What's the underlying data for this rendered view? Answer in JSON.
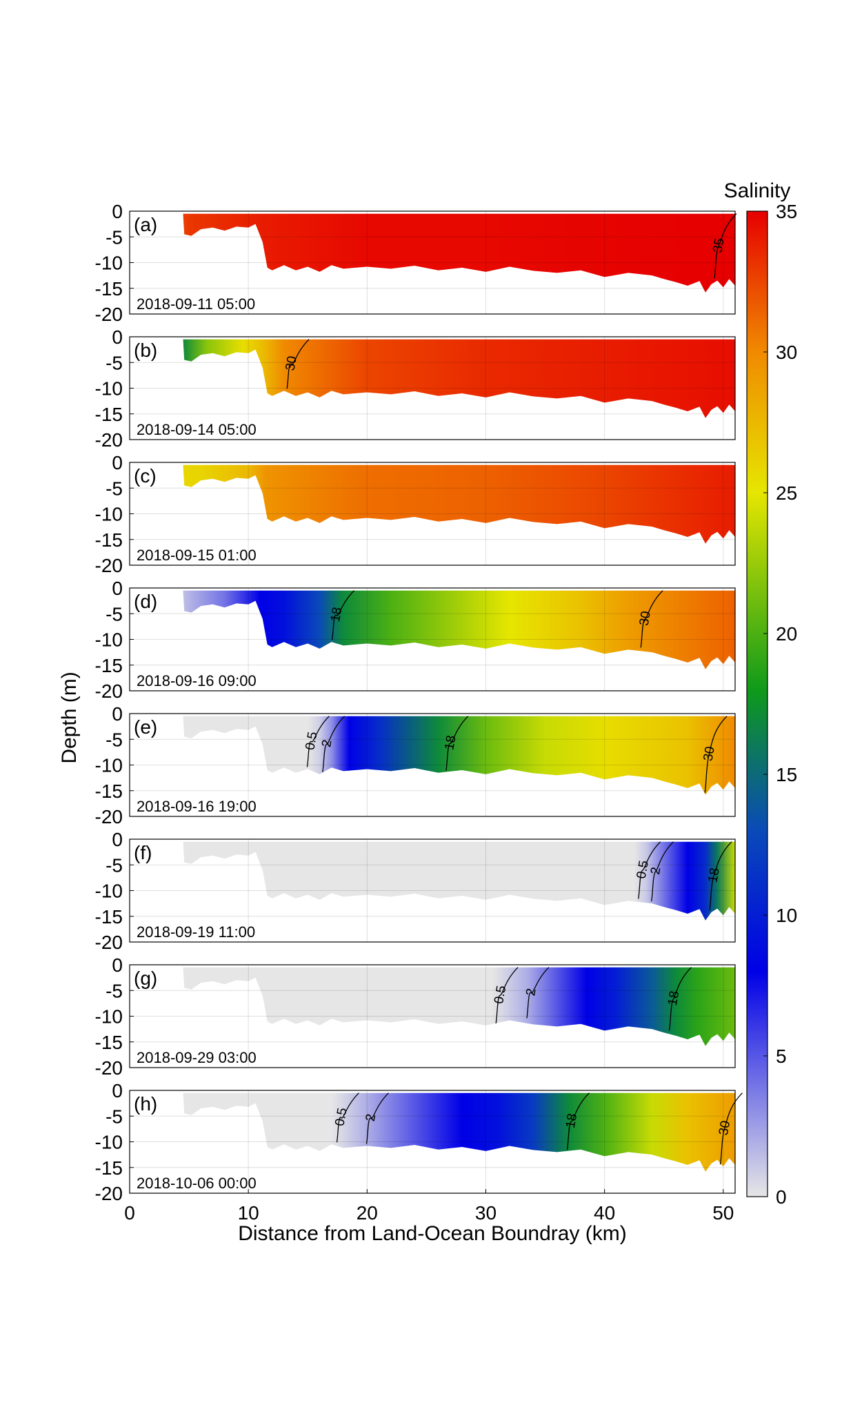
{
  "chart_data": {
    "type": "heatmap",
    "xlabel": "Distance from Land-Ocean Boundray (km)",
    "ylabel": "Depth (m)",
    "xlim": [
      0,
      51
    ],
    "ylim": [
      -20,
      0
    ],
    "x_ticks": [
      "0",
      "10",
      "20",
      "30",
      "40",
      "50"
    ],
    "y_ticks": [
      "0",
      "-5",
      "-10",
      "-15",
      "-20"
    ],
    "grid": true,
    "colorbar": {
      "label": "Salinity",
      "range": [
        0,
        35
      ],
      "ticks": [
        "35",
        "30",
        "25",
        "20",
        "15",
        "10",
        "5",
        "0"
      ],
      "colormap": [
        {
          "value": 0,
          "color": "#e6e6e6"
        },
        {
          "value": 8,
          "color": "#0000e6"
        },
        {
          "value": 13,
          "color": "#0a4ab8"
        },
        {
          "value": 18,
          "color": "#0f9a1a"
        },
        {
          "value": 25,
          "color": "#e6e600"
        },
        {
          "value": 30,
          "color": "#f08a00"
        },
        {
          "value": 35,
          "color": "#e60000"
        }
      ]
    },
    "seafloor_profile": {
      "x_km": [
        0,
        4.5,
        4.6,
        5.2,
        6,
        7,
        8,
        9,
        10,
        10.6,
        11.2,
        11.6,
        12,
        13,
        14,
        15,
        16,
        17,
        18,
        20,
        22,
        24,
        26,
        28,
        30,
        32,
        34,
        36,
        38,
        40,
        42,
        44,
        45,
        46,
        47,
        48,
        48.5,
        49,
        49.5,
        50,
        50.5,
        51
      ],
      "depth_m": [
        -0.5,
        -0.5,
        -4.5,
        -4.8,
        -3.5,
        -3.2,
        -3.8,
        -3.0,
        -3.2,
        -2.5,
        -6.0,
        -11.0,
        -11.5,
        -10.5,
        -11.5,
        -10.8,
        -11.8,
        -10.5,
        -11.2,
        -10.8,
        -11.2,
        -10.6,
        -11.5,
        -11.0,
        -11.8,
        -10.8,
        -11.6,
        -12.0,
        -11.5,
        -12.8,
        -12.0,
        -12.5,
        -13.2,
        -13.8,
        -14.5,
        -13.6,
        -15.8,
        -14.2,
        -13.5,
        -14.8,
        -13.2,
        -14.5
      ]
    },
    "panels": [
      {
        "label": "(a)",
        "time": "2018-09-11 05:00",
        "salinity_by_distance": [
          {
            "x": 0,
            "s": 27
          },
          {
            "x": 2,
            "s": 31
          },
          {
            "x": 5,
            "s": 33
          },
          {
            "x": 11,
            "s": 34
          },
          {
            "x": 20,
            "s": 34.7
          },
          {
            "x": 30,
            "s": 34.7
          },
          {
            "x": 40,
            "s": 34.9
          },
          {
            "x": 51,
            "s": 35
          }
        ],
        "contours": [
          {
            "level": "35",
            "x_km": 49.6
          }
        ]
      },
      {
        "label": "(b)",
        "time": "2018-09-14 05:00",
        "salinity_by_distance": [
          {
            "x": 0,
            "s": 8
          },
          {
            "x": 2.5,
            "s": 12
          },
          {
            "x": 4.5,
            "s": 17
          },
          {
            "x": 6.5,
            "s": 22
          },
          {
            "x": 9.5,
            "s": 25.5
          },
          {
            "x": 11,
            "s": 27
          },
          {
            "x": 13,
            "s": 30
          },
          {
            "x": 20,
            "s": 32.5
          },
          {
            "x": 30,
            "s": 33.5
          },
          {
            "x": 40,
            "s": 34
          },
          {
            "x": 51,
            "s": 34.5
          }
        ],
        "contours": [
          {
            "level": "30",
            "x_km": 13.6
          }
        ]
      },
      {
        "label": "(c)",
        "time": "2018-09-15 01:00",
        "salinity_by_distance": [
          {
            "x": 0,
            "s": 25.5
          },
          {
            "x": 6,
            "s": 26
          },
          {
            "x": 10,
            "s": 27.5
          },
          {
            "x": 11.5,
            "s": 29.5
          },
          {
            "x": 20,
            "s": 31
          },
          {
            "x": 30,
            "s": 31.5
          },
          {
            "x": 40,
            "s": 32.5
          },
          {
            "x": 51,
            "s": 34
          }
        ],
        "contours": []
      },
      {
        "label": "(d)",
        "time": "2018-09-16 09:00",
        "salinity_by_distance": [
          {
            "x": 0,
            "s": 0.2
          },
          {
            "x": 4,
            "s": 1
          },
          {
            "x": 8,
            "s": 4
          },
          {
            "x": 11,
            "s": 8
          },
          {
            "x": 13,
            "s": 9
          },
          {
            "x": 16,
            "s": 13
          },
          {
            "x": 18,
            "s": 17
          },
          {
            "x": 22,
            "s": 20
          },
          {
            "x": 28,
            "s": 23
          },
          {
            "x": 32,
            "s": 25
          },
          {
            "x": 38,
            "s": 27
          },
          {
            "x": 42,
            "s": 29
          },
          {
            "x": 51,
            "s": 31.5
          }
        ],
        "contours": [
          {
            "level": "18",
            "x_km": 17.4
          },
          {
            "level": "30",
            "x_km": 43.4
          }
        ]
      },
      {
        "label": "(e)",
        "time": "2018-09-16 19:00",
        "salinity_by_distance": [
          {
            "x": 0,
            "s": 0
          },
          {
            "x": 15,
            "s": 0
          },
          {
            "x": 16,
            "s": 0.8
          },
          {
            "x": 17,
            "s": 3
          },
          {
            "x": 18.5,
            "s": 8
          },
          {
            "x": 21,
            "s": 11
          },
          {
            "x": 26,
            "s": 17
          },
          {
            "x": 30,
            "s": 21
          },
          {
            "x": 35,
            "s": 24
          },
          {
            "x": 40,
            "s": 25.5
          },
          {
            "x": 47,
            "s": 27
          },
          {
            "x": 51,
            "s": 30
          }
        ],
        "contours": [
          {
            "level": "0.5",
            "x_km": 15.3
          },
          {
            "level": "2",
            "x_km": 16.6
          },
          {
            "level": "18",
            "x_km": 27.0
          },
          {
            "level": "30",
            "x_km": 48.8
          }
        ]
      },
      {
        "label": "(f)",
        "time": "2018-09-19 11:00",
        "salinity_by_distance": [
          {
            "x": 0,
            "s": 0
          },
          {
            "x": 42.5,
            "s": 0
          },
          {
            "x": 43.5,
            "s": 1
          },
          {
            "x": 45,
            "s": 4
          },
          {
            "x": 47,
            "s": 8
          },
          {
            "x": 48.5,
            "s": 11
          },
          {
            "x": 49.5,
            "s": 16
          },
          {
            "x": 51,
            "s": 24
          }
        ],
        "contours": [
          {
            "level": "0.5",
            "x_km": 43.2
          },
          {
            "level": "2",
            "x_km": 44.3
          },
          {
            "level": "18",
            "x_km": 49.2
          }
        ]
      },
      {
        "label": "(g)",
        "time": "2018-09-29 03:00",
        "salinity_by_distance": [
          {
            "x": 0,
            "s": 0
          },
          {
            "x": 30.5,
            "s": 0
          },
          {
            "x": 31.5,
            "s": 0.6
          },
          {
            "x": 33.5,
            "s": 2
          },
          {
            "x": 36,
            "s": 5
          },
          {
            "x": 38.5,
            "s": 8
          },
          {
            "x": 41,
            "s": 10
          },
          {
            "x": 44,
            "s": 14
          },
          {
            "x": 46,
            "s": 17
          },
          {
            "x": 48,
            "s": 19
          },
          {
            "x": 51,
            "s": 21
          }
        ],
        "contours": [
          {
            "level": "0.5",
            "x_km": 31.2
          },
          {
            "level": "2",
            "x_km": 33.8
          },
          {
            "level": "18",
            "x_km": 45.8
          }
        ]
      },
      {
        "label": "(h)",
        "time": "2018-10-06 00:00",
        "salinity_by_distance": [
          {
            "x": 0,
            "s": 0
          },
          {
            "x": 17,
            "s": 0
          },
          {
            "x": 18,
            "s": 0.6
          },
          {
            "x": 20,
            "s": 2
          },
          {
            "x": 24,
            "s": 5
          },
          {
            "x": 28,
            "s": 8
          },
          {
            "x": 31,
            "s": 9
          },
          {
            "x": 34,
            "s": 12
          },
          {
            "x": 37,
            "s": 17
          },
          {
            "x": 40,
            "s": 20
          },
          {
            "x": 44,
            "s": 24
          },
          {
            "x": 47,
            "s": 27
          },
          {
            "x": 51,
            "s": 29
          }
        ],
        "contours": [
          {
            "level": "0.5",
            "x_km": 17.8
          },
          {
            "level": "2",
            "x_km": 20.3
          },
          {
            "level": "18",
            "x_km": 37.2
          },
          {
            "level": "30",
            "x_km": 50.1
          }
        ]
      }
    ]
  }
}
